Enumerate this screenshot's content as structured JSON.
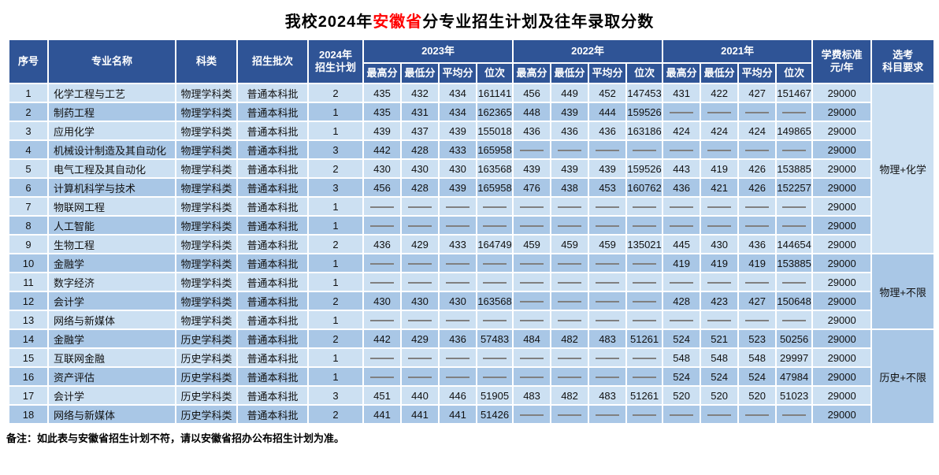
{
  "title": {
    "part1": "我校2024年",
    "highlight": "安徽省",
    "part2": "分专业招生计划及往年录取分数"
  },
  "header": {
    "seq": "序号",
    "major": "专业名称",
    "category": "科类",
    "batch": "招生批次",
    "plan_line1": "2024年",
    "plan_line2": "招生计划",
    "years": [
      "2023年",
      "2022年",
      "2021年"
    ],
    "sub_cols": [
      "最高分",
      "最低分",
      "平均分",
      "位次"
    ],
    "fee_line1": "学费标准",
    "fee_line2": "元/年",
    "req_line1": "选考",
    "req_line2": "科目要求"
  },
  "rows": [
    {
      "seq": "1",
      "major": "化学工程与工艺",
      "category": "物理学科类",
      "batch": "普通本科批",
      "plan": "2",
      "scores": [
        "435",
        "432",
        "434",
        "161141",
        "456",
        "449",
        "452",
        "147453",
        "431",
        "422",
        "427",
        "151467"
      ],
      "fee": "29000"
    },
    {
      "seq": "2",
      "major": "制药工程",
      "category": "物理学科类",
      "batch": "普通本科批",
      "plan": "1",
      "scores": [
        "435",
        "431",
        "434",
        "162365",
        "448",
        "439",
        "444",
        "159526",
        "——",
        "——",
        "——",
        "——"
      ],
      "fee": "29000"
    },
    {
      "seq": "3",
      "major": "应用化学",
      "category": "物理学科类",
      "batch": "普通本科批",
      "plan": "1",
      "scores": [
        "439",
        "437",
        "439",
        "155018",
        "436",
        "436",
        "436",
        "163186",
        "424",
        "424",
        "424",
        "149865"
      ],
      "fee": "29000"
    },
    {
      "seq": "4",
      "major": "机械设计制造及其自动化",
      "category": "物理学科类",
      "batch": "普通本科批",
      "plan": "3",
      "scores": [
        "442",
        "428",
        "433",
        "165958",
        "——",
        "——",
        "——",
        "——",
        "——",
        "——",
        "——",
        "——"
      ],
      "fee": "29000"
    },
    {
      "seq": "5",
      "major": "电气工程及其自动化",
      "category": "物理学科类",
      "batch": "普通本科批",
      "plan": "2",
      "scores": [
        "430",
        "430",
        "430",
        "163568",
        "439",
        "439",
        "439",
        "159526",
        "443",
        "419",
        "426",
        "153885"
      ],
      "fee": "29000"
    },
    {
      "seq": "6",
      "major": "计算机科学与技术",
      "category": "物理学科类",
      "batch": "普通本科批",
      "plan": "3",
      "scores": [
        "456",
        "428",
        "439",
        "165958",
        "476",
        "438",
        "453",
        "160762",
        "436",
        "421",
        "426",
        "152257"
      ],
      "fee": "29000"
    },
    {
      "seq": "7",
      "major": "物联网工程",
      "category": "物理学科类",
      "batch": "普通本科批",
      "plan": "1",
      "scores": [
        "——",
        "——",
        "——",
        "——",
        "——",
        "——",
        "——",
        "——",
        "——",
        "——",
        "——",
        "——"
      ],
      "fee": "29000"
    },
    {
      "seq": "8",
      "major": "人工智能",
      "category": "物理学科类",
      "batch": "普通本科批",
      "plan": "1",
      "scores": [
        "——",
        "——",
        "——",
        "——",
        "——",
        "——",
        "——",
        "——",
        "——",
        "——",
        "——",
        "——"
      ],
      "fee": "29000"
    },
    {
      "seq": "9",
      "major": "生物工程",
      "category": "物理学科类",
      "batch": "普通本科批",
      "plan": "2",
      "scores": [
        "436",
        "429",
        "433",
        "164749",
        "459",
        "459",
        "459",
        "135021",
        "445",
        "430",
        "436",
        "144654"
      ],
      "fee": "29000"
    },
    {
      "seq": "10",
      "major": "金融学",
      "category": "物理学科类",
      "batch": "普通本科批",
      "plan": "1",
      "scores": [
        "——",
        "——",
        "——",
        "——",
        "——",
        "——",
        "——",
        "——",
        "419",
        "419",
        "419",
        "153885"
      ],
      "fee": "29000"
    },
    {
      "seq": "11",
      "major": "数字经济",
      "category": "物理学科类",
      "batch": "普通本科批",
      "plan": "1",
      "scores": [
        "——",
        "——",
        "——",
        "——",
        "——",
        "——",
        "——",
        "——",
        "——",
        "——",
        "——",
        "——"
      ],
      "fee": "29000"
    },
    {
      "seq": "12",
      "major": "会计学",
      "category": "物理学科类",
      "batch": "普通本科批",
      "plan": "2",
      "scores": [
        "430",
        "430",
        "430",
        "163568",
        "——",
        "——",
        "——",
        "——",
        "428",
        "423",
        "427",
        "150648"
      ],
      "fee": "29000"
    },
    {
      "seq": "13",
      "major": "网络与新媒体",
      "category": "物理学科类",
      "batch": "普通本科批",
      "plan": "1",
      "scores": [
        "——",
        "——",
        "——",
        "——",
        "——",
        "——",
        "——",
        "——",
        "——",
        "——",
        "——",
        "——"
      ],
      "fee": "29000"
    },
    {
      "seq": "14",
      "major": "金融学",
      "category": "历史学科类",
      "batch": "普通本科批",
      "plan": "2",
      "scores": [
        "442",
        "429",
        "436",
        "57483",
        "484",
        "482",
        "483",
        "51261",
        "524",
        "521",
        "523",
        "50256"
      ],
      "fee": "29000"
    },
    {
      "seq": "15",
      "major": "互联网金融",
      "category": "历史学科类",
      "batch": "普通本科批",
      "plan": "1",
      "scores": [
        "——",
        "——",
        "——",
        "——",
        "——",
        "——",
        "——",
        "——",
        "548",
        "548",
        "548",
        "29997"
      ],
      "fee": "29000"
    },
    {
      "seq": "16",
      "major": "资产评估",
      "category": "历史学科类",
      "batch": "普通本科批",
      "plan": "1",
      "scores": [
        "——",
        "——",
        "——",
        "——",
        "——",
        "——",
        "——",
        "——",
        "524",
        "524",
        "524",
        "47984"
      ],
      "fee": "29000"
    },
    {
      "seq": "17",
      "major": "会计学",
      "category": "历史学科类",
      "batch": "普通本科批",
      "plan": "3",
      "scores": [
        "451",
        "440",
        "446",
        "51905",
        "483",
        "482",
        "483",
        "51261",
        "520",
        "520",
        "520",
        "51023"
      ],
      "fee": "29000"
    },
    {
      "seq": "18",
      "major": "网络与新媒体",
      "category": "历史学科类",
      "batch": "普通本科批",
      "plan": "2",
      "scores": [
        "441",
        "441",
        "441",
        "51426",
        "——",
        "——",
        "——",
        "——",
        "——",
        "——",
        "——",
        "——"
      ],
      "fee": "29000"
    }
  ],
  "subject_groups": [
    {
      "label": "物理+化学",
      "row_span": 9
    },
    {
      "label": "物理+不限",
      "row_span": 4
    },
    {
      "label": "历史+不限",
      "row_span": 5
    }
  ],
  "note": "备注：如此表与安徽省招生计划不符，请以安徽省招办公布招生计划为准。",
  "colors": {
    "header_bg": "#2F5496",
    "row_odd": "#CCE0F2",
    "row_even": "#A9C7E6",
    "req_bg": "#BDD7EE",
    "dash": "#808080",
    "title_highlight": "#FF0000"
  }
}
